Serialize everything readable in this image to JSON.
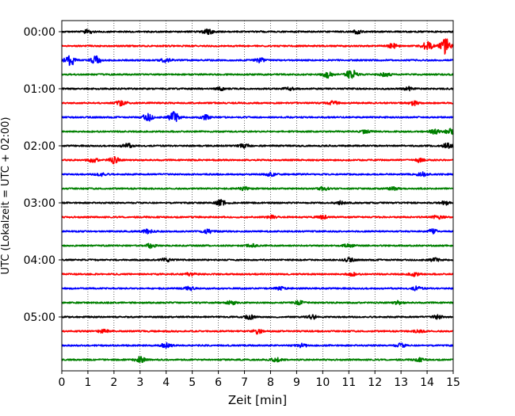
{
  "chart_data": {
    "type": "line",
    "title": "",
    "xlabel": "Zeit  [min]",
    "ylabel": "UTC (Lokalzeit = UTC + 02:00)",
    "xlim": [
      0,
      15
    ],
    "x_ticks": [
      0,
      1,
      2,
      3,
      4,
      5,
      6,
      7,
      8,
      9,
      10,
      11,
      12,
      13,
      14,
      15
    ],
    "x_grid": "vertical dotted lines at each minute",
    "y_tick_labels": [
      "00:00",
      "01:00",
      "02:00",
      "03:00",
      "04:00",
      "05:00"
    ],
    "trace_interval_min": 15,
    "trace_count": 24,
    "colors": [
      "#000000",
      "#ff0000",
      "#0000ff",
      "#008000"
    ],
    "traces": [
      {
        "start": "00:00",
        "color": "#000000",
        "bursts": [
          [
            1.0,
            0.7
          ],
          [
            5.6,
            1.0
          ],
          [
            11.3,
            0.7
          ]
        ]
      },
      {
        "start": "00:15",
        "color": "#ff0000",
        "bursts": [
          [
            12.7,
            0.9
          ],
          [
            14.0,
            1.8
          ],
          [
            14.7,
            3.0
          ]
        ]
      },
      {
        "start": "00:30",
        "color": "#0000ff",
        "bursts": [
          [
            0.3,
            2.4
          ],
          [
            1.3,
            1.5
          ],
          [
            4.0,
            0.8
          ],
          [
            7.6,
            0.8
          ]
        ]
      },
      {
        "start": "00:45",
        "color": "#008000",
        "bursts": [
          [
            10.2,
            1.2
          ],
          [
            11.1,
            2.0
          ],
          [
            12.4,
            0.8
          ]
        ]
      },
      {
        "start": "01:00",
        "color": "#000000",
        "bursts": [
          [
            6.1,
            0.6
          ],
          [
            8.7,
            0.6
          ],
          [
            13.3,
            0.6
          ]
        ]
      },
      {
        "start": "01:15",
        "color": "#ff0000",
        "bursts": [
          [
            2.3,
            1.0
          ],
          [
            10.4,
            0.7
          ],
          [
            13.5,
            0.8
          ]
        ]
      },
      {
        "start": "01:30",
        "color": "#0000ff",
        "bursts": [
          [
            3.3,
            1.4
          ],
          [
            4.3,
            2.0
          ],
          [
            5.5,
            0.8
          ]
        ]
      },
      {
        "start": "01:45",
        "color": "#008000",
        "bursts": [
          [
            11.6,
            0.6
          ],
          [
            14.3,
            0.8
          ],
          [
            14.9,
            1.0
          ]
        ]
      },
      {
        "start": "02:00",
        "color": "#000000",
        "bursts": [
          [
            2.5,
            0.9
          ],
          [
            7.0,
            0.7
          ],
          [
            14.8,
            1.0
          ]
        ]
      },
      {
        "start": "02:15",
        "color": "#ff0000",
        "bursts": [
          [
            1.2,
            0.7
          ],
          [
            2.0,
            1.2
          ],
          [
            13.7,
            0.7
          ]
        ]
      },
      {
        "start": "02:30",
        "color": "#0000ff",
        "bursts": [
          [
            1.5,
            0.7
          ],
          [
            8.0,
            0.6
          ],
          [
            13.8,
            0.8
          ]
        ]
      },
      {
        "start": "02:45",
        "color": "#008000",
        "bursts": [
          [
            7.0,
            0.6
          ],
          [
            10.0,
            0.8
          ],
          [
            12.7,
            0.6
          ]
        ]
      },
      {
        "start": "03:00",
        "color": "#000000",
        "bursts": [
          [
            6.1,
            1.0
          ],
          [
            10.7,
            0.7
          ],
          [
            14.7,
            0.7
          ]
        ]
      },
      {
        "start": "03:15",
        "color": "#ff0000",
        "bursts": [
          [
            8.0,
            0.6
          ],
          [
            10.0,
            0.7
          ],
          [
            14.4,
            0.6
          ]
        ]
      },
      {
        "start": "03:30",
        "color": "#0000ff",
        "bursts": [
          [
            3.3,
            0.7
          ],
          [
            5.6,
            0.9
          ],
          [
            14.2,
            0.8
          ]
        ]
      },
      {
        "start": "03:45",
        "color": "#008000",
        "bursts": [
          [
            3.4,
            0.8
          ],
          [
            7.3,
            0.6
          ],
          [
            11.0,
            0.6
          ]
        ]
      },
      {
        "start": "04:00",
        "color": "#000000",
        "bursts": [
          [
            4.0,
            0.6
          ],
          [
            11.0,
            0.7
          ],
          [
            14.3,
            0.6
          ]
        ]
      },
      {
        "start": "04:15",
        "color": "#ff0000",
        "bursts": [
          [
            4.9,
            0.6
          ],
          [
            11.1,
            0.6
          ],
          [
            13.5,
            0.7
          ]
        ]
      },
      {
        "start": "04:30",
        "color": "#0000ff",
        "bursts": [
          [
            4.9,
            0.7
          ],
          [
            8.4,
            0.6
          ],
          [
            13.6,
            0.7
          ]
        ]
      },
      {
        "start": "04:45",
        "color": "#008000",
        "bursts": [
          [
            6.5,
            0.6
          ],
          [
            9.1,
            0.6
          ],
          [
            12.9,
            0.6
          ]
        ]
      },
      {
        "start": "05:00",
        "color": "#000000",
        "bursts": [
          [
            7.2,
            0.8
          ],
          [
            9.6,
            0.7
          ],
          [
            14.4,
            0.7
          ]
        ]
      },
      {
        "start": "05:15",
        "color": "#ff0000",
        "bursts": [
          [
            1.6,
            0.7
          ],
          [
            7.5,
            0.9
          ],
          [
            13.7,
            0.6
          ]
        ]
      },
      {
        "start": "05:30",
        "color": "#0000ff",
        "bursts": [
          [
            4.0,
            0.9
          ],
          [
            9.2,
            0.7
          ],
          [
            13.0,
            0.7
          ]
        ]
      },
      {
        "start": "05:45",
        "color": "#008000",
        "bursts": [
          [
            3.0,
            1.0
          ],
          [
            8.2,
            0.7
          ],
          [
            13.7,
            0.6
          ]
        ]
      }
    ]
  }
}
